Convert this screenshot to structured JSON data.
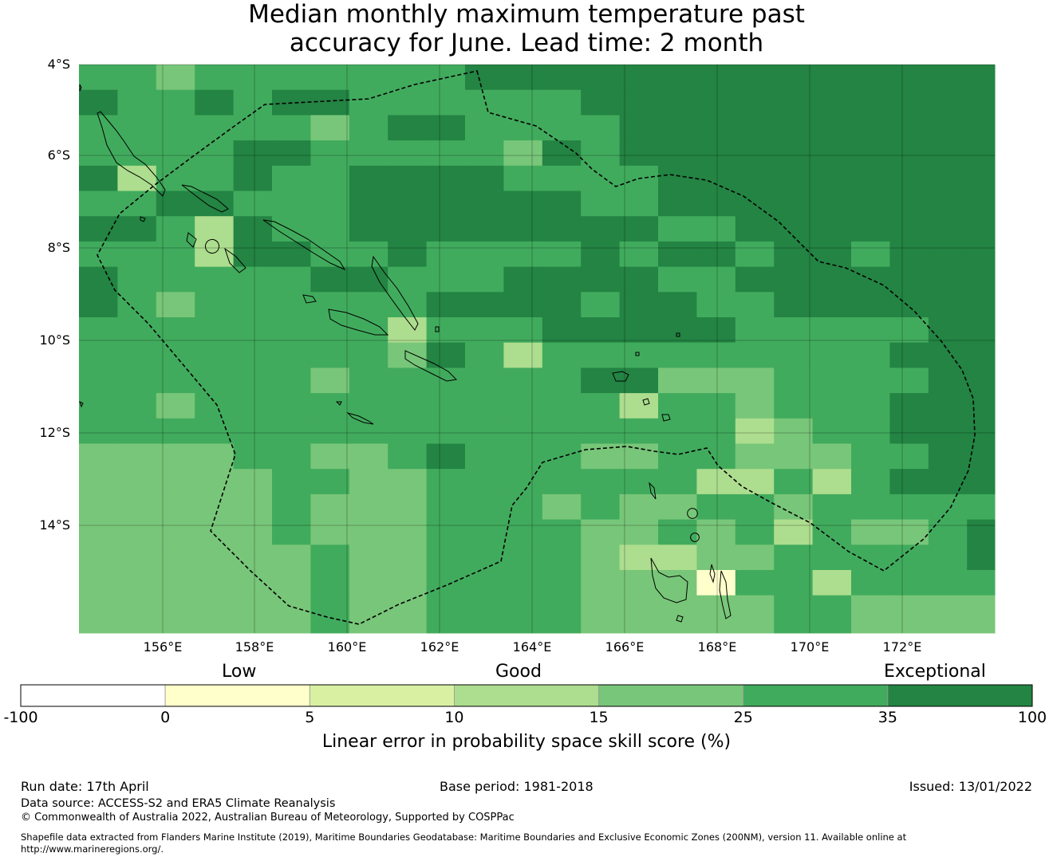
{
  "title": {
    "line1": "Median monthly maximum temperature past",
    "line2": "accuracy for June. Lead time: 2 month"
  },
  "map": {
    "lat_labels": [
      "4°S",
      "6°S",
      "8°S",
      "10°S",
      "12°S",
      "14°S"
    ],
    "lon_labels": [
      "156°E",
      "158°E",
      "160°E",
      "162°E",
      "164°E",
      "166°E",
      "168°E",
      "170°E",
      "172°E"
    ],
    "lon_range": [
      154.2,
      174.0
    ],
    "lat_range": [
      -16.3,
      -4.0
    ],
    "grid": true,
    "skill_grid_note": "cell value = skill category index 0-6 (see colorbar)"
  },
  "colorbar": {
    "category_labels": [
      "Low",
      "Good",
      "Exceptional"
    ],
    "ticks": [
      "-100",
      "0",
      "5",
      "10",
      "15",
      "25",
      "35",
      "100"
    ],
    "colors": [
      "#ffffff",
      "#ffffcc",
      "#d9f0a3",
      "#addd8e",
      "#78c679",
      "#41ab5d",
      "#238443"
    ],
    "title": "Linear error in probability space skill score (%)"
  },
  "footer": {
    "run_date": "Run date: 17th April",
    "base_period": "Base period: 1981-2018",
    "issued": "Issued: 13/01/2022",
    "data_source": "Data source: ACCESS-S2 and ERA5 Climate Reanalysis",
    "copyright": "© Commonwealth of Australia 2022, Australian Bureau of Meteorology, Supported by COSPPac",
    "shapefile_line1": "Shapefile data extracted from Flanders Marine Institute (2019), Maritime Boundaries Geodatabase: Maritime Boundaries and Exclusive Economic Zones (200NM), version 11. Available online at",
    "shapefile_line2": "http://www.marineregions.org/."
  }
}
